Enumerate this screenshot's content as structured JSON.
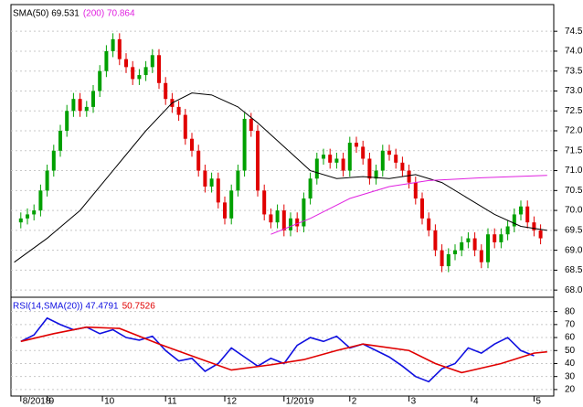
{
  "chart_data": [
    {
      "type": "candlestick",
      "up_color": "#00a000",
      "down_color": "#e00000",
      "xlim": [
        -1.5,
        81
      ],
      "ylim": [
        67.82,
        75.17
      ],
      "yticks": [
        {
          "value": 68.0,
          "label": "68.0"
        },
        68.5,
        {
          "value": 69.0,
          "label": "69.0"
        },
        69.5,
        {
          "value": 70.0,
          "label": "70.0"
        },
        70.5,
        {
          "value": 71.0,
          "label": "71.0"
        },
        71.5,
        {
          "value": 72.0,
          "label": "72.0"
        },
        72.5,
        {
          "value": 73.0,
          "label": "73.0"
        },
        73.5,
        {
          "value": 74.0,
          "label": "74.0"
        },
        74.5
      ],
      "grid": true,
      "candles": [
        [
          69.7,
          69.95,
          69.55,
          69.8
        ],
        [
          69.8,
          70.05,
          69.65,
          69.9
        ],
        [
          69.9,
          70.15,
          69.75,
          70.0
        ],
        [
          70.0,
          70.65,
          69.85,
          70.5
        ],
        [
          70.5,
          71.15,
          70.35,
          71.0
        ],
        [
          71.0,
          71.65,
          70.85,
          71.5
        ],
        [
          71.5,
          72.15,
          71.35,
          72.0
        ],
        [
          72.0,
          72.65,
          71.85,
          72.5
        ],
        [
          72.5,
          72.95,
          72.35,
          72.8
        ],
        [
          72.8,
          72.95,
          72.35,
          72.5
        ],
        [
          72.5,
          72.75,
          72.35,
          72.6
        ],
        [
          72.6,
          73.15,
          72.45,
          73.0
        ],
        [
          73.0,
          73.65,
          72.85,
          73.5
        ],
        [
          73.5,
          74.15,
          73.35,
          74.0
        ],
        [
          74.0,
          74.45,
          73.85,
          74.3
        ],
        [
          74.3,
          74.45,
          73.65,
          73.8
        ],
        [
          73.8,
          73.95,
          73.45,
          73.6
        ],
        [
          73.6,
          73.75,
          73.15,
          73.3
        ],
        [
          73.3,
          73.55,
          73.15,
          73.4
        ],
        [
          73.4,
          73.75,
          73.25,
          73.6
        ],
        [
          73.6,
          74.05,
          73.45,
          73.9
        ],
        [
          73.9,
          74.05,
          73.05,
          73.2
        ],
        [
          73.2,
          73.35,
          72.65,
          72.8
        ],
        [
          72.8,
          72.95,
          72.45,
          72.6
        ],
        [
          72.6,
          72.75,
          72.25,
          72.4
        ],
        [
          72.4,
          72.55,
          71.65,
          71.8
        ],
        [
          71.8,
          71.95,
          71.35,
          71.5
        ],
        [
          71.5,
          71.65,
          70.85,
          71.0
        ],
        [
          71.0,
          71.15,
          70.45,
          70.6
        ],
        [
          70.6,
          70.95,
          70.45,
          70.8
        ],
        [
          70.8,
          70.95,
          70.05,
          70.2
        ],
        [
          70.2,
          70.35,
          69.65,
          69.8
        ],
        [
          69.8,
          70.65,
          69.65,
          70.5
        ],
        [
          70.5,
          71.15,
          70.35,
          71.0
        ],
        [
          71.0,
          72.45,
          70.85,
          72.3
        ],
        [
          72.3,
          72.45,
          71.85,
          72.0
        ],
        [
          72.0,
          72.15,
          70.35,
          70.5
        ],
        [
          70.5,
          70.65,
          69.75,
          69.9
        ],
        [
          69.9,
          70.05,
          69.55,
          69.7
        ],
        [
          69.7,
          70.15,
          69.55,
          70.0
        ],
        [
          70.0,
          70.15,
          69.35,
          69.5
        ],
        [
          69.5,
          69.95,
          69.35,
          69.8
        ],
        [
          69.8,
          69.95,
          69.45,
          69.6
        ],
        [
          69.6,
          70.45,
          69.45,
          70.3
        ],
        [
          70.3,
          70.95,
          70.15,
          70.8
        ],
        [
          70.8,
          71.45,
          70.65,
          71.3
        ],
        [
          71.3,
          71.55,
          71.15,
          71.4
        ],
        [
          71.4,
          71.55,
          71.05,
          71.2
        ],
        [
          71.2,
          71.45,
          71.05,
          71.3
        ],
        [
          71.3,
          71.45,
          70.85,
          71.0
        ],
        [
          71.0,
          71.85,
          70.85,
          71.7
        ],
        [
          71.7,
          71.85,
          71.45,
          71.6
        ],
        [
          71.6,
          71.75,
          71.15,
          71.3
        ],
        [
          71.3,
          71.45,
          70.65,
          70.8
        ],
        [
          70.8,
          71.15,
          70.65,
          71.0
        ],
        [
          71.0,
          71.65,
          70.85,
          71.5
        ],
        [
          71.5,
          71.65,
          71.25,
          71.4
        ],
        [
          71.4,
          71.55,
          71.05,
          71.2
        ],
        [
          71.2,
          71.35,
          70.85,
          71.0
        ],
        [
          71.0,
          71.15,
          70.55,
          70.7
        ],
        [
          70.7,
          70.85,
          70.15,
          70.3
        ],
        [
          70.3,
          70.45,
          69.65,
          69.8
        ],
        [
          69.8,
          69.95,
          69.35,
          69.5
        ],
        [
          69.5,
          69.65,
          68.85,
          69.0
        ],
        [
          69.0,
          69.15,
          68.45,
          68.6
        ],
        [
          68.6,
          69.05,
          68.45,
          68.9
        ],
        [
          68.9,
          69.15,
          68.75,
          69.0
        ],
        [
          69.0,
          69.35,
          68.85,
          69.2
        ],
        [
          69.2,
          69.45,
          69.05,
          69.3
        ],
        [
          69.3,
          69.45,
          68.85,
          69.0
        ],
        [
          69.0,
          69.15,
          68.55,
          68.7
        ],
        [
          68.7,
          69.55,
          68.55,
          69.4
        ],
        [
          69.4,
          69.55,
          69.05,
          69.2
        ],
        [
          69.2,
          69.55,
          69.05,
          69.4
        ],
        [
          69.4,
          69.75,
          69.25,
          69.6
        ],
        [
          69.6,
          70.05,
          69.45,
          69.9
        ],
        [
          69.9,
          70.25,
          69.75,
          70.1
        ],
        [
          70.1,
          70.25,
          69.55,
          69.7
        ],
        [
          69.7,
          69.85,
          69.35,
          69.5
        ],
        [
          69.5,
          69.65,
          69.15,
          69.3
        ]
      ],
      "series": [
        {
          "name": "SMA(50) 69.531",
          "color": "#000000",
          "x": [
            -1,
            4,
            9,
            14,
            19,
            23,
            26,
            29,
            33,
            36,
            40,
            44,
            48,
            52,
            56,
            60,
            64,
            68,
            72,
            76,
            80
          ],
          "values": [
            68.7,
            69.3,
            70.0,
            71.0,
            72.0,
            72.7,
            72.95,
            72.9,
            72.6,
            72.2,
            71.6,
            71.0,
            70.8,
            70.85,
            70.8,
            70.9,
            70.7,
            70.3,
            69.9,
            69.6,
            69.5
          ]
        },
        {
          "name": "(200) 70.864",
          "color": "#e020e0",
          "x": [
            38,
            44,
            50,
            56,
            62,
            70,
            80
          ],
          "values": [
            69.4,
            69.8,
            70.3,
            70.6,
            70.75,
            70.82,
            70.88
          ]
        }
      ]
    },
    {
      "type": "line",
      "xlim": [
        -1.5,
        81
      ],
      "ylim": [
        15,
        91
      ],
      "yticks": [
        20,
        30,
        40,
        50,
        60,
        70,
        80
      ],
      "grid": true,
      "xticks": [
        {
          "value": 0,
          "label": "8/2018"
        },
        {
          "value": 4,
          "label": "9"
        },
        {
          "value": 12.4,
          "label": "10"
        },
        {
          "value": 22,
          "label": "11"
        },
        {
          "value": 31,
          "label": "12"
        },
        {
          "value": 40,
          "label": "1/2019"
        },
        {
          "value": 50,
          "label": "2"
        },
        {
          "value": 59,
          "label": "3"
        },
        {
          "value": 68.5,
          "label": "4"
        },
        {
          "value": 78,
          "label": "5"
        }
      ],
      "series": [
        {
          "name": "RSI(14,SMA(20)) 47.4791",
          "color": "#1010e0",
          "x": [
            0,
            2,
            4,
            6,
            8,
            10,
            12,
            14,
            16,
            18,
            20,
            22,
            24,
            26,
            28,
            30,
            32,
            34,
            36,
            38,
            40,
            42,
            44,
            46,
            48,
            50,
            52,
            54,
            56,
            58,
            60,
            62,
            64,
            66,
            68,
            70,
            72,
            74,
            76,
            78
          ],
          "values": [
            57,
            62,
            75,
            70,
            66,
            68,
            63,
            66,
            60,
            58,
            61,
            50,
            42,
            44,
            34,
            40,
            52,
            45,
            38,
            44,
            40,
            54,
            60,
            57,
            61,
            52,
            55,
            50,
            45,
            38,
            30,
            26,
            36,
            40,
            52,
            48,
            55,
            60,
            50,
            46
          ]
        },
        {
          "name": "50.7526",
          "color": "#e00000",
          "x": [
            0,
            5,
            10,
            15,
            21,
            27,
            32,
            38,
            43,
            48,
            52,
            59,
            63,
            67,
            73,
            78,
            80
          ],
          "values": [
            57,
            63,
            68,
            67,
            55,
            44,
            35,
            39,
            43,
            50,
            55,
            50,
            40,
            33,
            40,
            48,
            49
          ]
        }
      ]
    }
  ]
}
